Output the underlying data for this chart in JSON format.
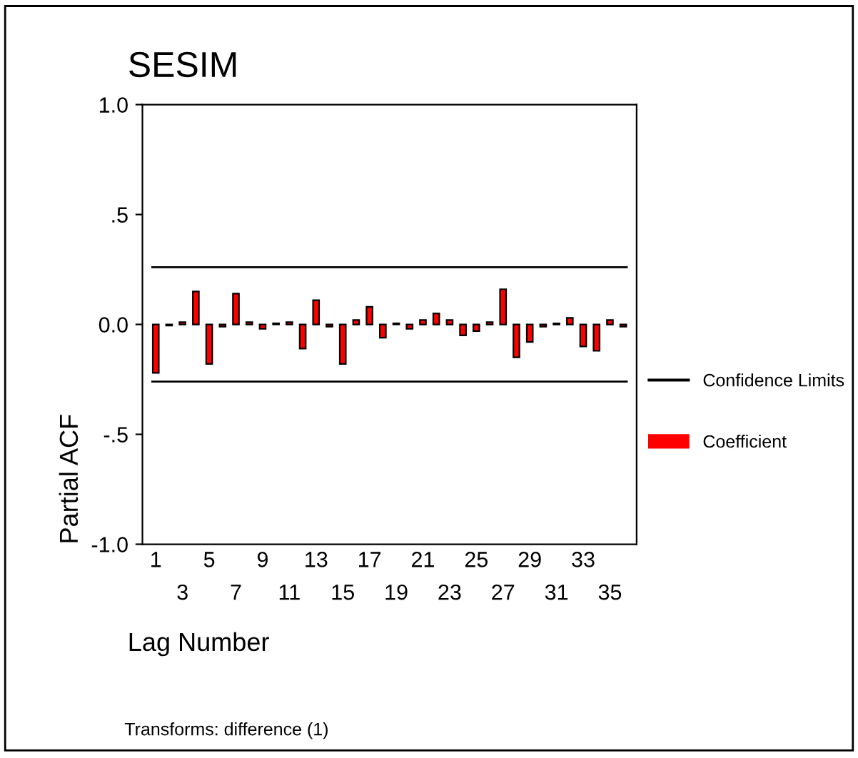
{
  "chart_data": {
    "type": "bar",
    "title": "SESIM",
    "xlabel": "Lag Number",
    "ylabel": "Partial ACF",
    "annotations": [
      "Transforms: difference (1)"
    ],
    "categories": [
      "1",
      null,
      "3",
      null,
      "5",
      null,
      "7",
      null,
      "9",
      null,
      "11",
      null,
      "13",
      null,
      "15",
      null,
      "17",
      null,
      "19",
      null,
      "21",
      null,
      "23",
      null,
      "25",
      null,
      "27",
      null,
      "29",
      null,
      "31",
      null,
      "33",
      null,
      "35",
      null
    ],
    "series": [
      {
        "name": "Coefficient",
        "color": "#ff0000",
        "values": [
          -0.22,
          -0.005,
          0.01,
          0.15,
          -0.18,
          -0.01,
          0.14,
          0.01,
          -0.02,
          0.005,
          0.01,
          -0.11,
          0.11,
          -0.01,
          -0.18,
          0.02,
          0.08,
          -0.06,
          0.005,
          -0.02,
          0.02,
          0.05,
          0.02,
          -0.05,
          -0.03,
          0.01,
          0.16,
          -0.15,
          -0.08,
          -0.01,
          0.005,
          0.03,
          -0.1,
          -0.12,
          0.02,
          -0.01
        ]
      }
    ],
    "ref_lines": [
      {
        "axis": "y",
        "value": 0.26,
        "label": "Confidence Limits",
        "color": "#000000"
      },
      {
        "axis": "y",
        "value": -0.26,
        "color": "#000000"
      }
    ],
    "ylim": [
      -1,
      1
    ],
    "yticks": [
      {
        "value": -1,
        "label": "-1.0"
      },
      {
        "value": -0.5,
        "label": "-.5"
      },
      {
        "value": 0,
        "label": "0.0"
      },
      {
        "value": 0.5,
        "label": ".5"
      },
      {
        "value": 1,
        "label": "1.0"
      }
    ],
    "grid": false,
    "legend": "right"
  }
}
